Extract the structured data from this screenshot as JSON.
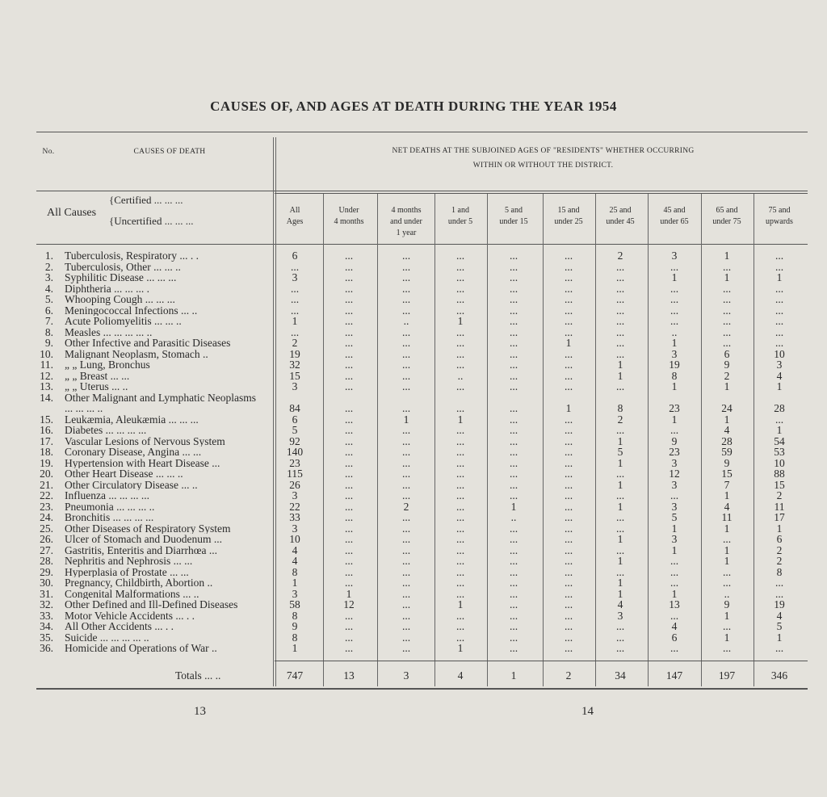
{
  "title": "CAUSES OF, AND AGES AT DEATH DURING THE YEAR 1954",
  "header": {
    "no": "No.",
    "causes": "CAUSES OF DEATH",
    "net_deaths": "NET DEATHS AT THE SUBJOINED AGES OF \"RESIDENTS\" WHETHER OCCURRING",
    "net_deaths2": "WITHIN OR WITHOUT THE DISTRICT.",
    "all_causes": "All Causes",
    "certified": "Certified ... ... ...",
    "uncertified": "Uncertified ... ... ...",
    "columns": [
      [
        "All",
        "Ages"
      ],
      [
        "Under",
        "4 months"
      ],
      [
        "4 months",
        "and under",
        "1 year"
      ],
      [
        "1 and",
        "under 5"
      ],
      [
        "5 and",
        "under 15"
      ],
      [
        "15 and",
        "under 25"
      ],
      [
        "25 and",
        "under 45"
      ],
      [
        "45 and",
        "under 65"
      ],
      [
        "65 and",
        "under 75"
      ],
      [
        "75 and",
        "upwards"
      ]
    ]
  },
  "rows": [
    [
      "1.",
      "Tuberculosis, Respiratory ... . .",
      [
        "6",
        "...",
        "...",
        "...",
        "...",
        "...",
        "2",
        "3",
        "1",
        "..."
      ]
    ],
    [
      "2.",
      "Tuberculosis, Other ... ... ..",
      [
        "...",
        "...",
        "...",
        "...",
        "...",
        "...",
        "...",
        "...",
        "...",
        "..."
      ]
    ],
    [
      "3.",
      "Syphilitic Disease ... ... ...",
      [
        "3",
        "...",
        "...",
        "...",
        "...",
        "...",
        "...",
        "1",
        "1",
        "1"
      ]
    ],
    [
      "4.",
      "Diphtheria ... ... ... .",
      [
        "...",
        "...",
        "...",
        "...",
        "...",
        "...",
        "...",
        "...",
        "...",
        "..."
      ]
    ],
    [
      "5.",
      "Whooping Cough ... ... ...",
      [
        "...",
        "...",
        "...",
        "...",
        "...",
        "...",
        "...",
        "...",
        "...",
        "..."
      ]
    ],
    [
      "6.",
      "Meningococcal Infections ... ..",
      [
        "...",
        "...",
        "...",
        "...",
        "...",
        "...",
        "...",
        "...",
        "...",
        "..."
      ]
    ],
    [
      "7.",
      "Acute Poliomyelitis ... ... ..",
      [
        "1",
        "...",
        "..",
        "1",
        "...",
        "...",
        "...",
        "...",
        "...",
        "..."
      ]
    ],
    [
      "8.",
      "Measles ... ... ... ... ..",
      [
        "...",
        "...",
        "...",
        "...",
        "...",
        "...",
        "...",
        "..",
        "...",
        "..."
      ]
    ],
    [
      "9.",
      "Other Infective and Parasitic Diseases",
      [
        "2",
        "...",
        "...",
        "...",
        "...",
        "1",
        "...",
        "1",
        "...",
        "..."
      ]
    ],
    [
      "10.",
      "Malignant Neoplasm, Stomach ..",
      [
        "19",
        "...",
        "...",
        "...",
        "...",
        "...",
        "...",
        "3",
        "6",
        "10"
      ]
    ],
    [
      "11.",
      "„ „ Lung, Bronchus",
      [
        "32",
        "...",
        "...",
        "...",
        "...",
        "...",
        "1",
        "19",
        "9",
        "3"
      ]
    ],
    [
      "12.",
      "„ „ Breast ... ...",
      [
        "15",
        "...",
        "...",
        "..",
        "...",
        "...",
        "1",
        "8",
        "2",
        "4"
      ]
    ],
    [
      "13.",
      "„ „ Uterus ... ..",
      [
        "3",
        "...",
        "...",
        "...",
        "...",
        "...",
        "...",
        "1",
        "1",
        "1"
      ]
    ],
    [
      "14.",
      "Other Malignant and Lymphatic Neoplasms ... ... ... ..",
      [
        "84",
        "...",
        "...",
        "...",
        "...",
        "1",
        "8",
        "23",
        "24",
        "28"
      ]
    ],
    [
      "15.",
      "Leukæmia, Aleukæmia ... ... ...",
      [
        "6",
        "...",
        "1",
        "1",
        "...",
        "...",
        "2",
        "1",
        "1",
        "..."
      ]
    ],
    [
      "16.",
      "Diabetes ... ... ... ...",
      [
        "5",
        "...",
        "...",
        "...",
        "...",
        "...",
        "...",
        "...",
        "4",
        "1"
      ]
    ],
    [
      "17.",
      "Vascular Lesions of Nervous System",
      [
        "92",
        "...",
        "...",
        "...",
        "...",
        "...",
        "1",
        "9",
        "28",
        "54"
      ]
    ],
    [
      "18.",
      "Coronary Disease, Angina ... ...",
      [
        "140",
        "...",
        "...",
        "...",
        "...",
        "...",
        "5",
        "23",
        "59",
        "53"
      ]
    ],
    [
      "19.",
      "Hypertension with Heart Disease ...",
      [
        "23",
        "...",
        "...",
        "...",
        "...",
        "...",
        "1",
        "3",
        "9",
        "10"
      ]
    ],
    [
      "20.",
      "Other Heart Disease ... ... ..",
      [
        "115",
        "...",
        "...",
        "...",
        "...",
        "...",
        "...",
        "12",
        "15",
        "88"
      ]
    ],
    [
      "21.",
      "Other Circulatory Disease ... ..",
      [
        "26",
        "...",
        "...",
        "...",
        "...",
        "...",
        "1",
        "3",
        "7",
        "15"
      ]
    ],
    [
      "22.",
      "Influenza ... ... ... ...",
      [
        "3",
        "...",
        "...",
        "...",
        "...",
        "...",
        "...",
        "...",
        "1",
        "2"
      ]
    ],
    [
      "23.",
      "Pneumonia ... ... ... ..",
      [
        "22",
        "...",
        "2",
        "...",
        "1",
        "...",
        "1",
        "3",
        "4",
        "11"
      ]
    ],
    [
      "24.",
      "Bronchitis ... ... ... ...",
      [
        "33",
        "...",
        "...",
        "...",
        "..",
        "...",
        "...",
        "5",
        "11",
        "17"
      ]
    ],
    [
      "25.",
      "Other Diseases of Respiratory System",
      [
        "3",
        "...",
        "...",
        "...",
        "...",
        "...",
        "...",
        "1",
        "1",
        "1"
      ]
    ],
    [
      "26.",
      "Ulcer of Stomach and Duodenum ...",
      [
        "10",
        "...",
        "...",
        "...",
        "...",
        "...",
        "1",
        "3",
        "...",
        "6"
      ]
    ],
    [
      "27.",
      "Gastritis, Enteritis and Diarrhœa ...",
      [
        "4",
        "...",
        "...",
        "...",
        "...",
        "...",
        "...",
        "1",
        "1",
        "2"
      ]
    ],
    [
      "28.",
      "Nephritis and Nephrosis ... ...",
      [
        "4",
        "...",
        "...",
        "...",
        "...",
        "...",
        "1",
        "...",
        "1",
        "2"
      ]
    ],
    [
      "29.",
      "Hyperplasia of Prostate ... ...",
      [
        "8",
        "...",
        "...",
        "...",
        "...",
        "...",
        "...",
        "...",
        "...",
        "8"
      ]
    ],
    [
      "30.",
      "Pregnancy, Childbirth, Abortion ..",
      [
        "1",
        "...",
        "...",
        "...",
        "...",
        "...",
        "1",
        "...",
        "...",
        "..."
      ]
    ],
    [
      "31.",
      "Congenital Malformations ... ..",
      [
        "3",
        "1",
        "...",
        "...",
        "...",
        "...",
        "1",
        "1",
        "..",
        "..."
      ]
    ],
    [
      "32.",
      "Other Defined and Ill-Defined Diseases",
      [
        "58",
        "12",
        "...",
        "1",
        "...",
        "...",
        "4",
        "13",
        "9",
        "19"
      ]
    ],
    [
      "33.",
      "Motor Vehicle Accidents ... . .",
      [
        "8",
        "...",
        "...",
        "...",
        "...",
        "...",
        "3",
        "...",
        "1",
        "4"
      ]
    ],
    [
      "34.",
      "All Other Accidents ... . .",
      [
        "9",
        "...",
        "...",
        "...",
        "...",
        "...",
        "...",
        "4",
        "...",
        "5"
      ]
    ],
    [
      "35.",
      "Suicide ... ... ... ... ..",
      [
        "8",
        "...",
        "...",
        "...",
        "...",
        "...",
        "...",
        "6",
        "1",
        "1"
      ]
    ],
    [
      "36.",
      "Homicide and Operations of War ..",
      [
        "1",
        "...",
        "...",
        "1",
        "...",
        "...",
        "...",
        "...",
        "...",
        "..."
      ]
    ]
  ],
  "totals": {
    "label": "Totals ... ..",
    "values": [
      "747",
      "13",
      "3",
      "4",
      "1",
      "2",
      "34",
      "147",
      "197",
      "346"
    ]
  },
  "page_numbers": {
    "left": "13",
    "right": "14"
  }
}
